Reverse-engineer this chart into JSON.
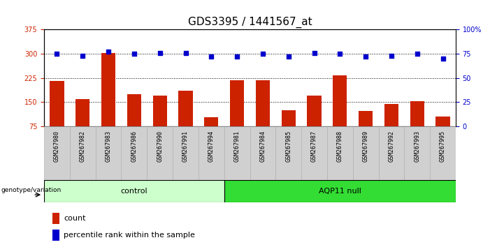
{
  "title": "GDS3395 / 1441567_at",
  "samples": [
    "GSM267980",
    "GSM267982",
    "GSM267983",
    "GSM267986",
    "GSM267990",
    "GSM267991",
    "GSM267994",
    "GSM267981",
    "GSM267984",
    "GSM267985",
    "GSM267987",
    "GSM267988",
    "GSM267989",
    "GSM267992",
    "GSM267993",
    "GSM267995"
  ],
  "counts": [
    215,
    158,
    302,
    175,
    170,
    185,
    103,
    218,
    218,
    125,
    170,
    232,
    122,
    143,
    152,
    105
  ],
  "percentiles": [
    75,
    73,
    77,
    75,
    76,
    76,
    72,
    72,
    75,
    72,
    76,
    75,
    72,
    73,
    75,
    70
  ],
  "bar_color": "#CC2200",
  "dot_color": "#0000CC",
  "ylim_left": [
    75,
    375
  ],
  "ylim_right": [
    0,
    100
  ],
  "yticks_left": [
    75,
    150,
    225,
    300,
    375
  ],
  "yticks_right": [
    0,
    25,
    50,
    75,
    100
  ],
  "ctrl_color": "#ccffcc",
  "aqp_color": "#33dd33",
  "genotype_label": "genotype/variation",
  "legend_count": "count",
  "legend_percentile": "percentile rank within the sample",
  "title_fontsize": 11,
  "tick_fontsize": 7,
  "bar_width": 0.55,
  "ctrl_n": 7,
  "aqp_n": 9
}
